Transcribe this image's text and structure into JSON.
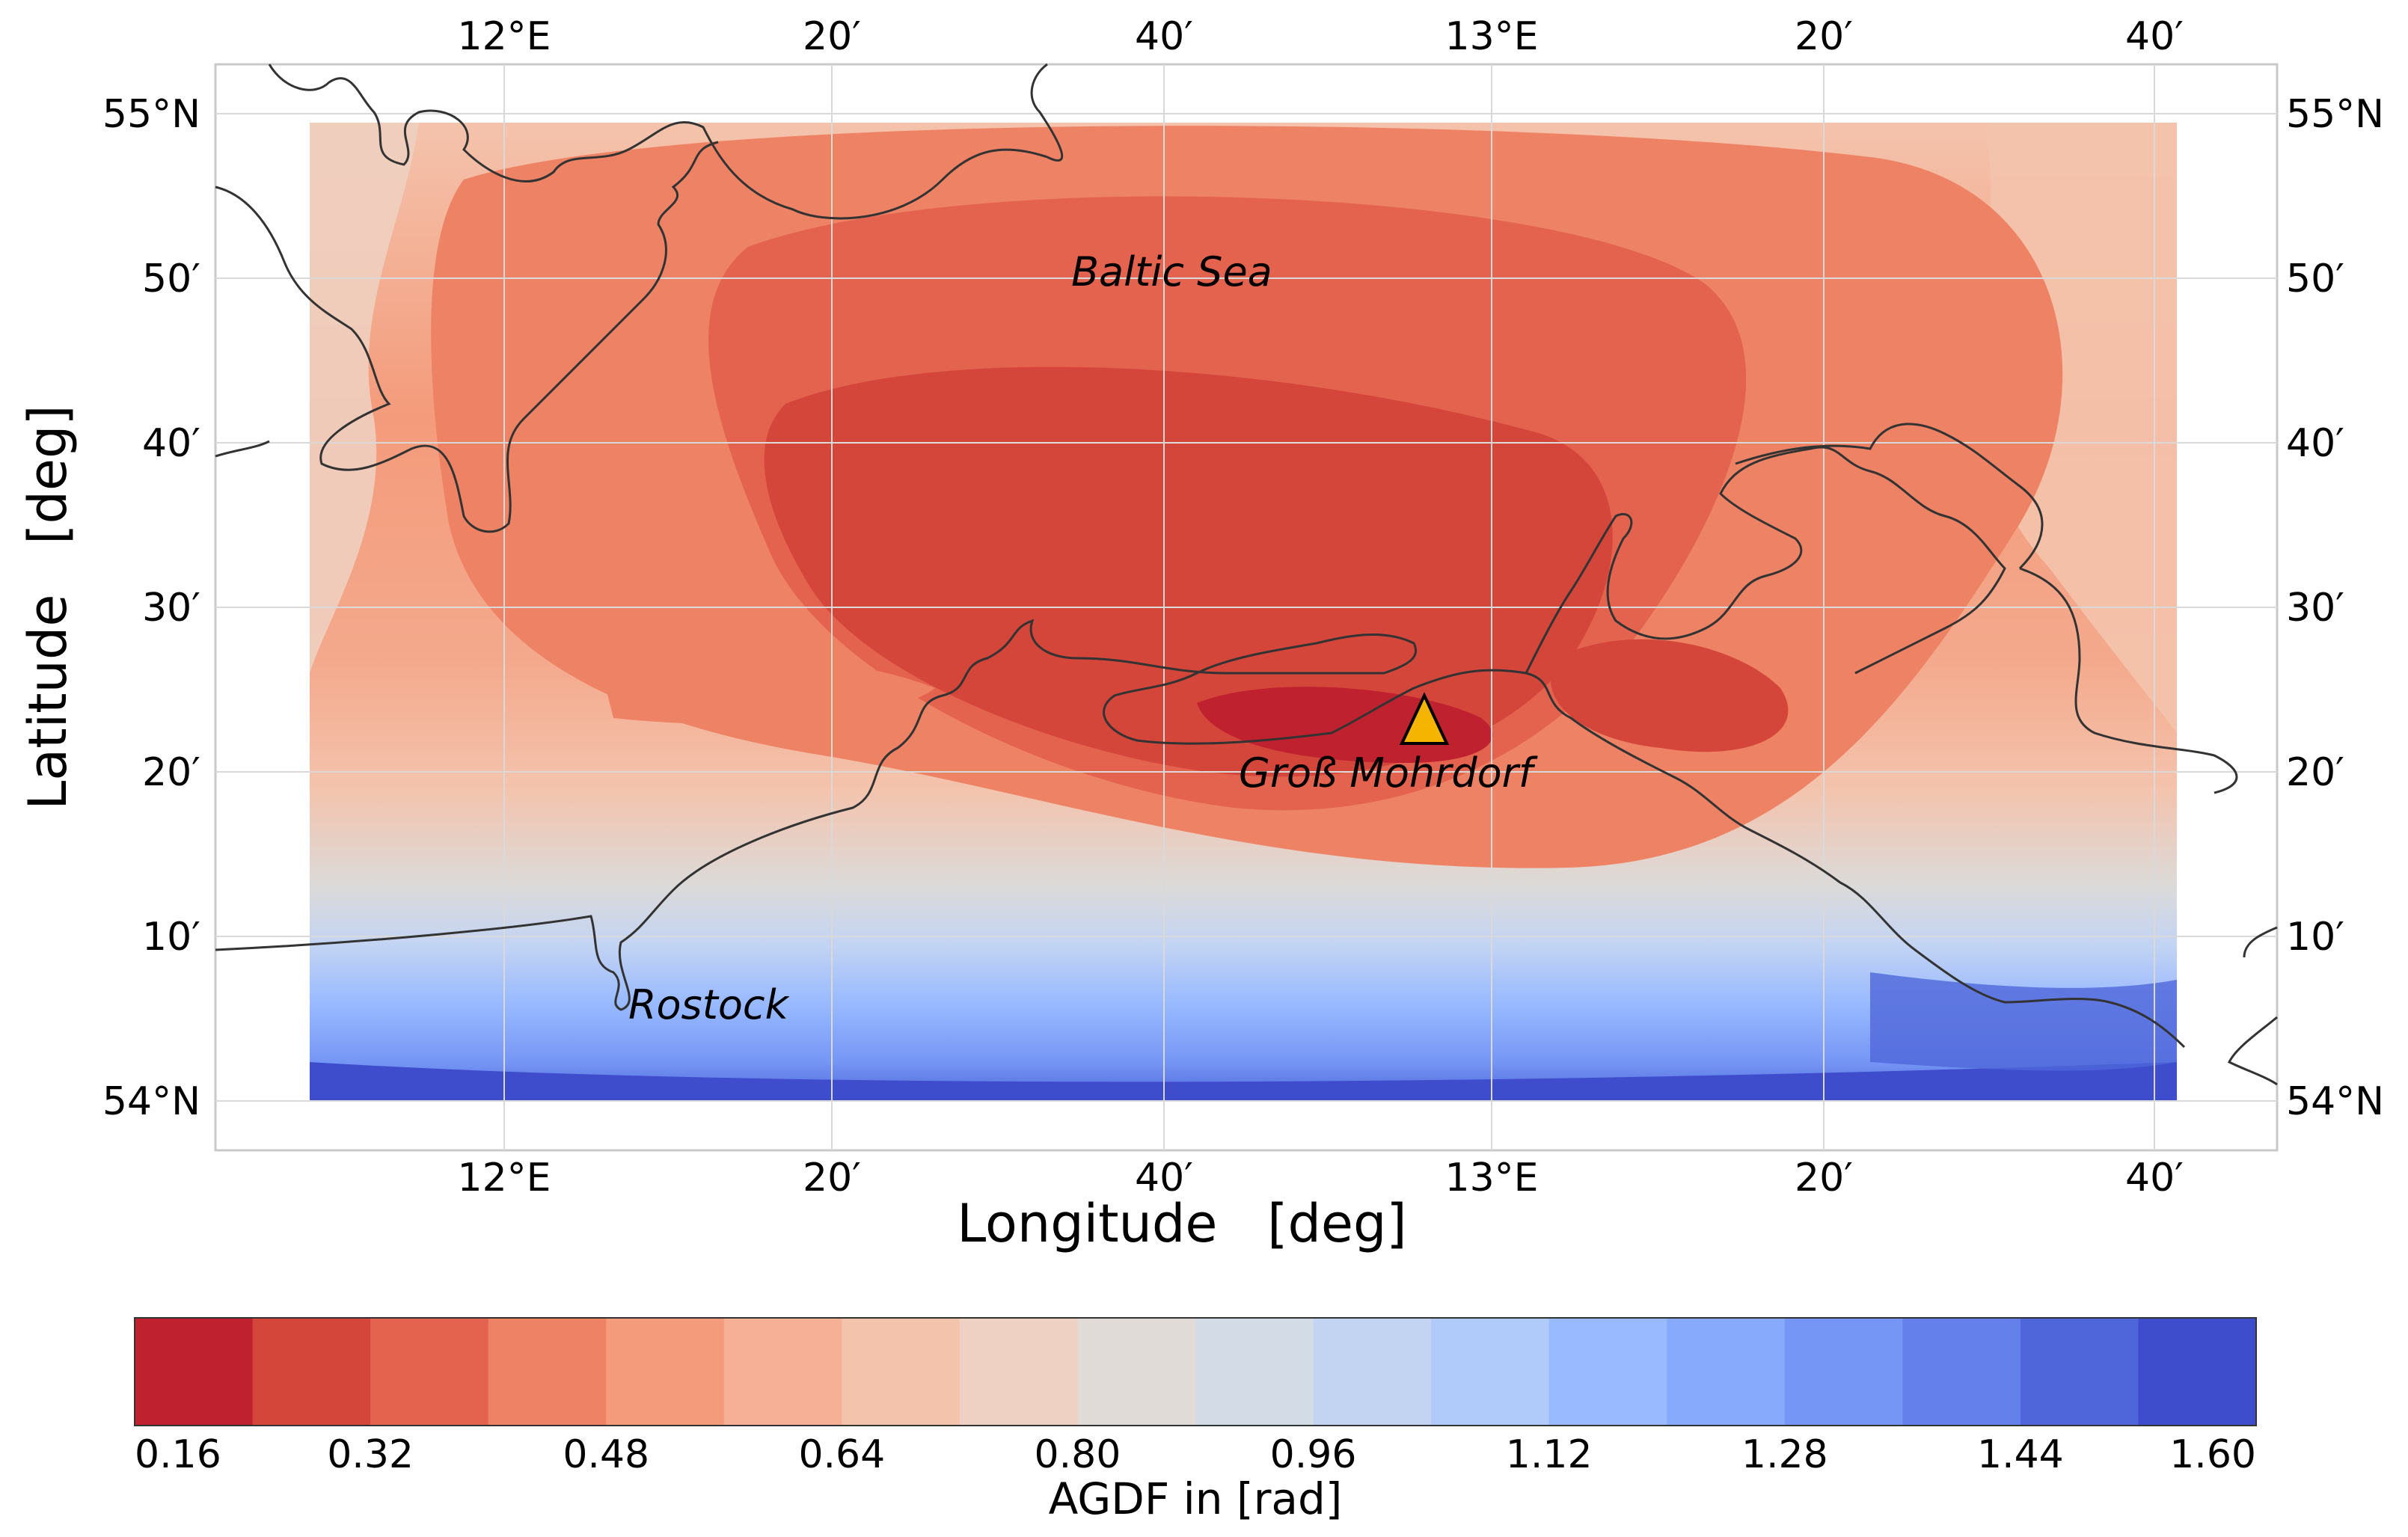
{
  "map": {
    "x_axis_title": "Longitude   [deg]",
    "y_axis_title": "Latitude   [deg]",
    "lon_ticks": [
      "12°E",
      "20′",
      "40′",
      "13°E",
      "20′",
      "40′"
    ],
    "lat_ticks": [
      "55°N",
      "50′",
      "40′",
      "30′",
      "20′",
      "10′",
      "54°N"
    ],
    "places": {
      "sea": "Baltic Sea",
      "station": "Groß Mohrdorf",
      "city": "Rostock"
    },
    "station_marker_color": "#f5b400",
    "coastline_color": "#333333"
  },
  "colorbar": {
    "title": "AGDF in [rad]",
    "tick_labels": [
      "0.16",
      "0.32",
      "0.48",
      "0.64",
      "0.80",
      "0.96",
      "1.12",
      "1.28",
      "1.44",
      "1.60"
    ],
    "colors": [
      "#bf212f",
      "#d4453a",
      "#e3634e",
      "#ee8264",
      "#f49b7b",
      "#f6b095",
      "#f4c3ac",
      "#eed1c3",
      "#e1dbd7",
      "#d2dbe6",
      "#c3d4f3",
      "#b0cbfa",
      "#99baff",
      "#88aafc",
      "#7696f5",
      "#6480ea",
      "#4f66da",
      "#3e4dcc"
    ]
  }
}
